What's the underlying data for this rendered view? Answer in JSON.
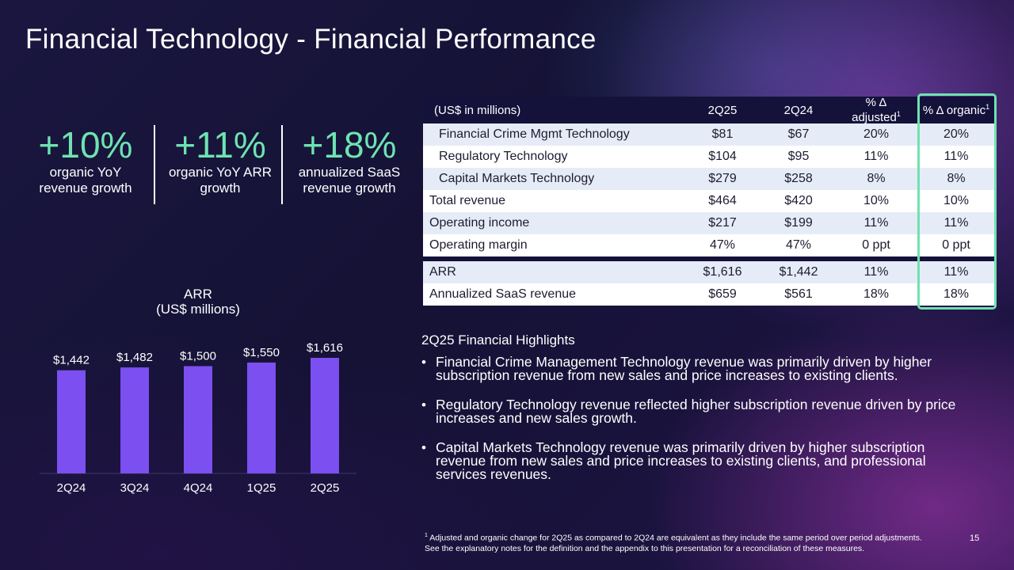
{
  "title": "Financial Technology - Financial Performance",
  "kpis": [
    {
      "value": "+10%",
      "label_line1": "organic YoY",
      "label_line2": "revenue growth"
    },
    {
      "value": "+11%",
      "label_line1": "organic YoY ARR",
      "label_line2": "growth"
    },
    {
      "value": "+18%",
      "label_line1": "annualized SaaS",
      "label_line2": "revenue growth"
    }
  ],
  "colors": {
    "accent_green": "#6ee3b0",
    "bar_purple": "#7b4ff0",
    "table_header": "#14123a",
    "row_shade": "#e6ecf7"
  },
  "chart_data": {
    "type": "bar",
    "title_line1": "ARR",
    "title_line2": "(US$ millions)",
    "categories": [
      "2Q24",
      "3Q24",
      "4Q24",
      "1Q25",
      "2Q25"
    ],
    "values": [
      1442,
      1482,
      1500,
      1550,
      1616
    ],
    "data_labels": [
      "$1,442",
      "$1,482",
      "$1,500",
      "$1,550",
      "$1,616"
    ],
    "ylim": [
      0,
      1616
    ],
    "grid": false,
    "legend": "none"
  },
  "table": {
    "headers": {
      "label": "(US$ in millions)",
      "col1": "2Q25",
      "col2": "2Q24",
      "col3_line1": "% Δ",
      "col3_line2": "adjusted",
      "col3_sup": "1",
      "col4": "% Δ organic",
      "col4_sup": "1"
    },
    "rows": [
      {
        "label": "Financial Crime Mgmt Technology",
        "c1": "$81",
        "c2": "$67",
        "c3": "20%",
        "c4": "20%"
      },
      {
        "label": "Regulatory Technology",
        "c1": "$104",
        "c2": "$95",
        "c3": "11%",
        "c4": "11%"
      },
      {
        "label": "Capital Markets Technology",
        "c1": "$279",
        "c2": "$258",
        "c3": "8%",
        "c4": "8%"
      },
      {
        "label": "Total revenue",
        "c1": "$464",
        "c2": "$420",
        "c3": "10%",
        "c4": "10%"
      },
      {
        "label": "Operating income",
        "c1": "$217",
        "c2": "$199",
        "c3": "11%",
        "c4": "11%"
      },
      {
        "label": "Operating margin",
        "c1": "47%",
        "c2": "47%",
        "c3": "0 ppt",
        "c4": "0 ppt"
      },
      {
        "label": "ARR",
        "c1": "$1,616",
        "c2": "$1,442",
        "c3": "11%",
        "c4": "11%"
      },
      {
        "label": "Annualized SaaS revenue",
        "c1": "$659",
        "c2": "$561",
        "c3": "18%",
        "c4": "18%"
      }
    ]
  },
  "highlights": {
    "title": "2Q25 Financial Highlights",
    "bullet": "•",
    "items": [
      "Financial Crime Management Technology revenue was primarily driven by higher subscription revenue from new sales and price increases to existing clients.",
      "Regulatory Technology revenue reflected higher subscription revenue driven by price increases and new sales growth.",
      "Capital Markets Technology revenue was primarily driven by higher subscription revenue from new sales and price increases to existing clients, and professional services revenues."
    ]
  },
  "footnote": {
    "marker": "1",
    "text": "Adjusted and organic change for 2Q25 as compared to 2Q24 are equivalent as they include the same period over period adjustments. See the explanatory notes for the definition and the appendix to this presentation for a reconciliation of these measures."
  },
  "page_number": "15"
}
